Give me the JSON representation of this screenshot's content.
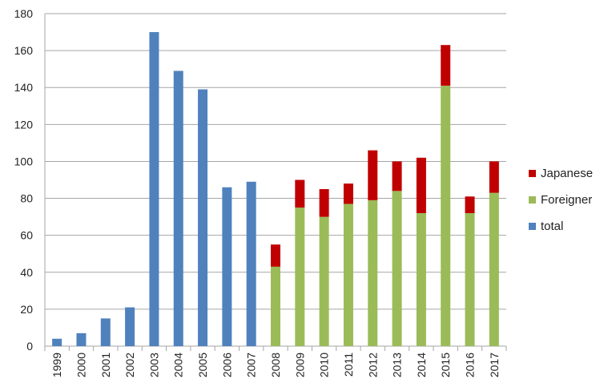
{
  "chart_data": {
    "type": "bar",
    "stacked": true,
    "categories": [
      "1999",
      "2000",
      "2001",
      "2002",
      "2003",
      "2004",
      "2005",
      "2006",
      "2007",
      "2008",
      "2009",
      "2010",
      "2011",
      "2012",
      "2013",
      "2014",
      "2015",
      "2016",
      "2017"
    ],
    "series": [
      {
        "name": "total",
        "color": "#4f81bd",
        "values": [
          4,
          7,
          15,
          21,
          170,
          149,
          139,
          86,
          89,
          null,
          null,
          null,
          null,
          null,
          null,
          null,
          null,
          null,
          null
        ]
      },
      {
        "name": "Foreigner",
        "color": "#9bbb59",
        "values": [
          null,
          null,
          null,
          null,
          null,
          null,
          null,
          null,
          null,
          43,
          75,
          70,
          77,
          79,
          84,
          72,
          141,
          72,
          83
        ]
      },
      {
        "name": "Japanese",
        "color": "#c00000",
        "values": [
          null,
          null,
          null,
          null,
          null,
          null,
          null,
          null,
          null,
          12,
          15,
          15,
          11,
          27,
          16,
          30,
          22,
          9,
          17
        ]
      }
    ],
    "legend_order": [
      "Japanese",
      "Foreigner",
      "total"
    ],
    "yticks": [
      0,
      20,
      40,
      60,
      80,
      100,
      120,
      140,
      160,
      180
    ],
    "ylim": [
      0,
      180
    ],
    "grid": true,
    "legend_position": "right"
  }
}
